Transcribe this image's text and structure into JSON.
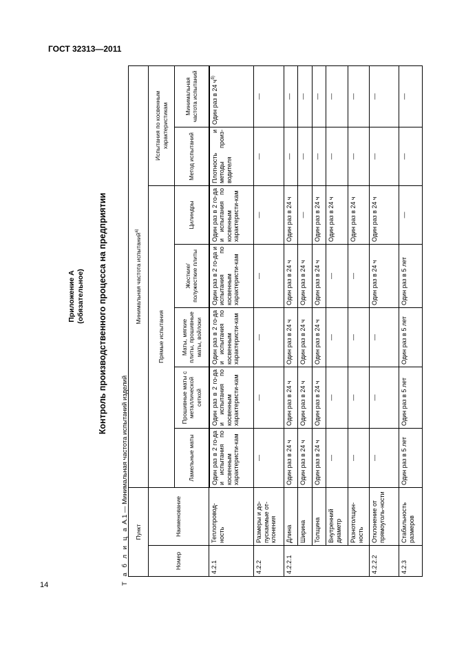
{
  "header": {
    "doc_code": "ГОСТ 32313—2011"
  },
  "page_number": "14",
  "annex": {
    "title": "Приложение А",
    "status": "(обязательное)"
  },
  "section_title": "Контроль производственного процесса на предприятии",
  "table": {
    "caption_label": "Т а б л и ц а",
    "caption_text": "А.1 — Минимальная частота испытаний изделий",
    "headers": {
      "item": "Пункт",
      "number": "Номер",
      "name": "Наименование",
      "min_freq": "Минимальная частота испытаний",
      "min_freq_note": "а)",
      "direct": "Прямые испытания",
      "indirect": "Испытания по косвенным характеристикам",
      "columns": [
        "Ламельные маты",
        "Прошивные маты с металлической сеткой",
        "Маты, мягкие плиты, прошивные маты, войлоки",
        "Жесткие/ полужесткие плиты",
        "Цилиндры",
        "Метод испытаний",
        "Минимальная частота испытаний"
      ]
    },
    "rows": [
      {
        "number": "4.2.1",
        "name": "Теплопровод-ность",
        "values": [
          "Один раз в 2 го-да и испытания по косвенным характеристи-кам",
          "Один раз в 2 го-да и испытания по косвенным характеристи-кам",
          "Один раз в 2 го-да и испытания по косвенным характеристи-кам",
          "Один раз в 2 го-да и испытания по косвенным характеристи-кам",
          "Один раз в 2 го-да и испытания по косвенным характеристи-кам",
          "Плотность и методы произ-водителя",
          "Один раз в 24 ч"
        ],
        "last_note": "б)"
      },
      {
        "number": "4.2.2",
        "name": "Размеры и до-пускаемые от-клонения",
        "values": [
          "—",
          "—",
          "—",
          "—",
          "—",
          "—",
          "—"
        ]
      },
      {
        "number": "4.2.2.1",
        "name": "Длина",
        "values": [
          "Один раз в 24 ч",
          "Один раз в 24 ч",
          "Один раз в 24 ч",
          "Один раз в 24 ч",
          "Один раз в 24 ч",
          "—",
          "—"
        ]
      },
      {
        "number": "",
        "name": "Ширина",
        "values": [
          "Один раз в 24 ч",
          "Один раз в 24 ч",
          "Один раз в 24 ч",
          "Один раз в 24 ч",
          "—",
          "—",
          "—"
        ]
      },
      {
        "number": "",
        "name": "Толщина",
        "values": [
          "Один раз в 24 ч",
          "Один раз в 24 ч",
          "Один раз в 24 ч",
          "Один раз в 24 ч",
          "Один раз в 24 ч",
          "—",
          "—"
        ]
      },
      {
        "number": "",
        "name": "Внутренний диаметр",
        "values": [
          "—",
          "—",
          "—",
          "—",
          "Один раз в 24 ч",
          "—",
          "—"
        ]
      },
      {
        "number": "",
        "name": "Разнотолщин-ность",
        "values": [
          "—",
          "—",
          "—",
          "—",
          "Один раз в 24 ч",
          "—",
          "—"
        ]
      },
      {
        "number": "4.2.2.2",
        "name": "Отклонение от прямоуголь-ности",
        "values": [
          "—",
          "—",
          "—",
          "Один раз в 24 ч",
          "Один раз в 24 ч",
          "—",
          "—"
        ]
      },
      {
        "number": "4.2.3",
        "name": "Стабильность размеров",
        "values": [
          "Один раз в 5 лет",
          "Один раз в 5 лет",
          "Один раз в 5 лет",
          "Один раз в 5 лет",
          "—",
          "—",
          "—"
        ]
      }
    ]
  }
}
